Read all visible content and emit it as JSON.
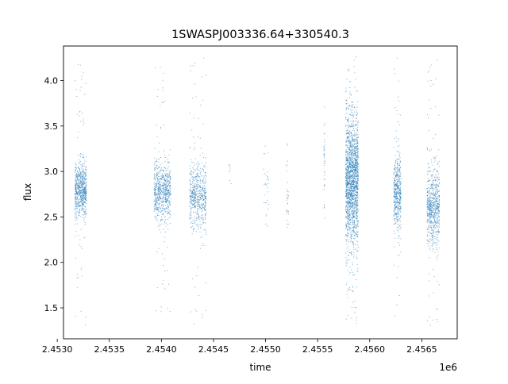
{
  "chart_data": {
    "type": "scatter",
    "title": "1SWASPJ003336.64+330540.3",
    "xlabel": "time",
    "ylabel": "flux",
    "x_offset_label": "1e6",
    "xlim": [
      2.45306,
      2.45684
    ],
    "ylim": [
      1.16,
      4.38
    ],
    "x_ticks": [
      2.453,
      2.4535,
      2.454,
      2.4545,
      2.455,
      2.4555,
      2.456,
      2.4565
    ],
    "x_tick_labels": [
      "2.4530",
      "2.4535",
      "2.4540",
      "2.4545",
      "2.4550",
      "2.4555",
      "2.4560",
      "2.4565"
    ],
    "y_ticks": [
      1.5,
      2.0,
      2.5,
      3.0,
      3.5,
      4.0
    ],
    "y_tick_labels": [
      "1.5",
      "2.0",
      "2.5",
      "3.0",
      "3.5",
      "4.0"
    ],
    "grid": false,
    "marker_color": "#1f77b4",
    "series": [
      {
        "clusters": [
          {
            "x_range": [
              2.45317,
              2.45328
            ],
            "y_center": 2.8,
            "y_spread": 0.15,
            "y_min": 1.3,
            "y_max": 4.27,
            "density": 700
          },
          {
            "x_range": [
              2.45393,
              2.45409
            ],
            "y_center": 2.78,
            "y_spread": 0.16,
            "y_min": 1.32,
            "y_max": 4.27,
            "density": 700
          },
          {
            "x_range": [
              2.45427,
              2.45443
            ],
            "y_center": 2.75,
            "y_spread": 0.18,
            "y_min": 1.32,
            "y_max": 4.29,
            "density": 600
          },
          {
            "x_range": [
              2.45465,
              2.45467
            ],
            "y_center": 3.0,
            "y_spread": 0.1,
            "y_min": 2.85,
            "y_max": 3.12,
            "density": 8
          },
          {
            "x_range": [
              2.45498,
              2.45503
            ],
            "y_center": 2.85,
            "y_spread": 0.2,
            "y_min": 2.4,
            "y_max": 3.28,
            "density": 30
          },
          {
            "x_range": [
              2.4552,
              2.45522
            ],
            "y_center": 2.75,
            "y_spread": 0.25,
            "y_min": 2.34,
            "y_max": 3.4,
            "density": 30
          },
          {
            "x_range": [
              2.45556,
              2.45557
            ],
            "y_center": 3.1,
            "y_spread": 0.25,
            "y_min": 2.48,
            "y_max": 3.85,
            "density": 40
          },
          {
            "x_range": [
              2.45577,
              2.45589
            ],
            "y_center": 2.9,
            "y_spread": 0.35,
            "y_min": 1.32,
            "y_max": 4.29,
            "density": 1800
          },
          {
            "x_range": [
              2.45623,
              2.4563
            ],
            "y_center": 2.75,
            "y_spread": 0.2,
            "y_min": 1.4,
            "y_max": 4.25,
            "density": 500
          },
          {
            "x_range": [
              2.45655,
              2.45667
            ],
            "y_center": 2.62,
            "y_spread": 0.22,
            "y_min": 1.3,
            "y_max": 4.27,
            "density": 700
          }
        ]
      }
    ]
  }
}
